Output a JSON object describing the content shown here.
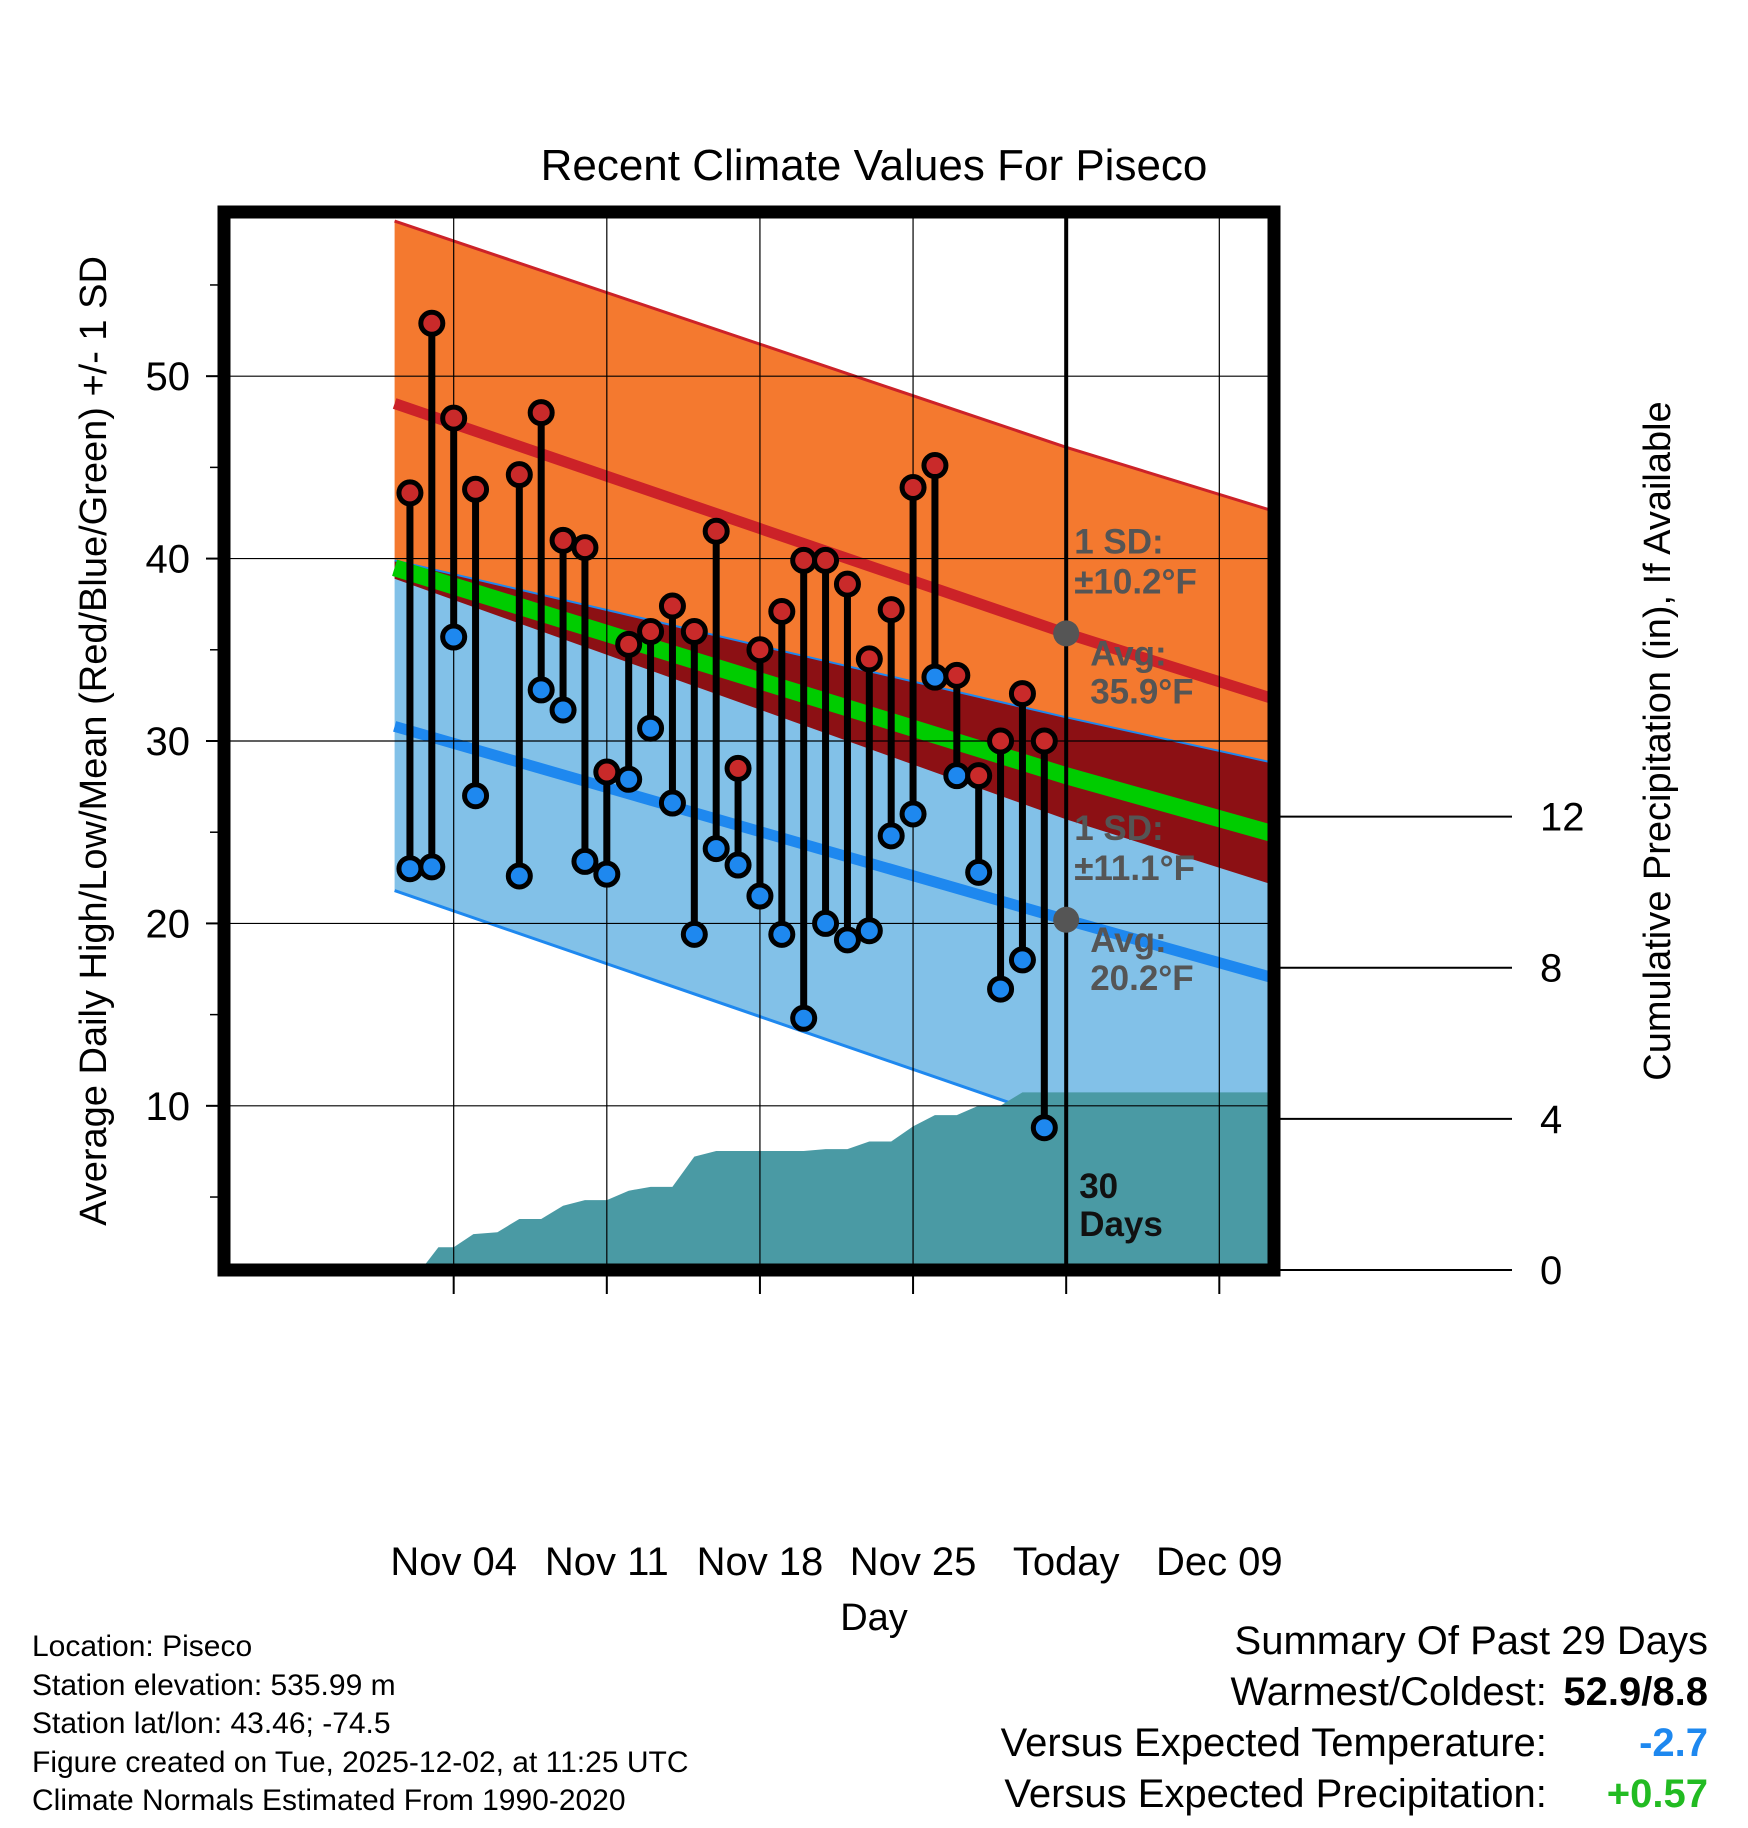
{
  "colors": {
    "high_band": "#f4792f",
    "high_line": "#cc2228",
    "low_band": "#82c1e8",
    "low_line": "#1e88ef",
    "overlap_band": "#8c1014",
    "mean_line": "#00cc00",
    "precip": "#4a9aa4",
    "high_dot": "#c92a2a",
    "low_dot": "#1e88ef",
    "anomaly_temp": "#1e88ef",
    "anomaly_precip": "#22bb22"
  },
  "chart_data": {
    "type": "line",
    "title": "Recent Climate Values For Piseco",
    "xlabel": "Day",
    "ylabel_left": "Average Daily High/Low/Mean (Red/Blue/Green) +/- 1 SD",
    "ylabel_right": "Cumulative Precipitation (in), If Available",
    "x_day_range": [
      -38.5,
      9.5
    ],
    "ylim_left": [
      1,
      59
    ],
    "ylim_right": [
      0,
      28
    ],
    "x_ticks": [
      {
        "day": -28,
        "label": "Nov 04"
      },
      {
        "day": -21,
        "label": "Nov 11"
      },
      {
        "day": -14,
        "label": "Nov 18"
      },
      {
        "day": -7,
        "label": "Nov 25"
      },
      {
        "day": 0,
        "label": "Today"
      },
      {
        "day": 7,
        "label": "Dec 09"
      }
    ],
    "y_ticks_left": [
      10,
      20,
      30,
      40,
      50
    ],
    "y_ticks_right": [
      0,
      4,
      8,
      12
    ],
    "normals": {
      "x": [
        -30.7,
        0,
        9.5
      ],
      "high_avg": [
        48.5,
        35.9,
        32.3
      ],
      "high_upper": [
        58.5,
        46.1,
        42.6
      ],
      "high_lower": [
        38.9,
        25.7,
        22.1
      ],
      "low_avg": [
        30.8,
        20.2,
        17.0
      ],
      "low_upper": [
        39.9,
        31.3,
        28.8
      ],
      "low_lower": [
        21.8,
        9.1,
        5.2
      ],
      "mean_avg": [
        39.5,
        28.1,
        24.9
      ]
    },
    "observations": {
      "day": [
        -30,
        -29,
        -28,
        -27,
        -25,
        -24,
        -23,
        -22,
        -21,
        -20,
        -19,
        -18,
        -17,
        -16,
        -15,
        -14,
        -13,
        -12,
        -11,
        -10,
        -9,
        -8,
        -7,
        -6,
        -5,
        -4,
        -3,
        -2,
        -1
      ],
      "high": [
        43.6,
        52.9,
        47.7,
        43.8,
        44.6,
        48.0,
        41.0,
        40.6,
        28.3,
        35.3,
        36.0,
        37.4,
        36.0,
        41.5,
        28.5,
        35.0,
        37.1,
        39.9,
        39.9,
        38.6,
        34.5,
        37.2,
        43.9,
        45.1,
        33.6,
        28.1,
        30.0,
        32.6,
        30.0
      ],
      "low": [
        23.0,
        23.1,
        35.7,
        27.0,
        22.6,
        32.8,
        31.7,
        23.4,
        22.7,
        27.9,
        30.7,
        26.6,
        19.4,
        24.1,
        23.2,
        21.5,
        19.4,
        14.8,
        20.0,
        19.1,
        19.6,
        24.8,
        26.0,
        33.5,
        28.1,
        22.8,
        16.4,
        18.0,
        8.8
      ]
    },
    "precip_cumulative": {
      "day": [
        -30.7,
        -29.5,
        -28.7,
        -28.0,
        -27.1,
        -26.0,
        -25.0,
        -24.0,
        -23.0,
        -22.0,
        -21.0,
        -20.0,
        -19.0,
        -18.0,
        -17.0,
        -16.0,
        -15.0,
        -14.0,
        -13.0,
        -12.0,
        -11.0,
        -10.0,
        -9.0,
        -8.0,
        -7.0,
        -6.0,
        -5.0,
        -4.0,
        -3.0,
        -2.0,
        -1.0,
        0.0,
        9.5
      ],
      "values": [
        0,
        0,
        0.6,
        0.6,
        0.95,
        1.0,
        1.35,
        1.35,
        1.7,
        1.85,
        1.85,
        2.1,
        2.2,
        2.2,
        3.0,
        3.15,
        3.15,
        3.15,
        3.15,
        3.15,
        3.2,
        3.2,
        3.4,
        3.4,
        3.8,
        4.1,
        4.1,
        4.35,
        4.35,
        4.7,
        4.7,
        4.7,
        4.7
      ]
    },
    "annotations": {
      "high_sd_label": "1 SD:",
      "high_sd_value": "±10.2°F",
      "high_avg_label": "Avg:",
      "high_avg_value": "35.9°F",
      "low_sd_label": "1 SD:",
      "low_sd_value": "±11.1°F",
      "low_avg_label": "Avg:",
      "low_avg_value": "20.2°F",
      "days_number": "30",
      "days_word": "Days"
    }
  },
  "footer": {
    "location": "Location: Piseco",
    "elevation": "Station elevation: 535.99 m",
    "latlon": "Station lat/lon: 43.46; -74.5",
    "created": "Figure created on Tue, 2025-12-02, at 11:25 UTC",
    "normals": "Climate Normals Estimated From 1990-2020"
  },
  "summary": {
    "heading": "Summary Of Past 29 Days",
    "warmest_label": "Warmest/Coldest:",
    "warmest_value": "52.9/8.8",
    "temp_label": "Versus Expected Temperature:",
    "temp_value": "-2.7",
    "precip_label": "Versus Expected Precipitation:",
    "precip_value": "+0.57"
  }
}
